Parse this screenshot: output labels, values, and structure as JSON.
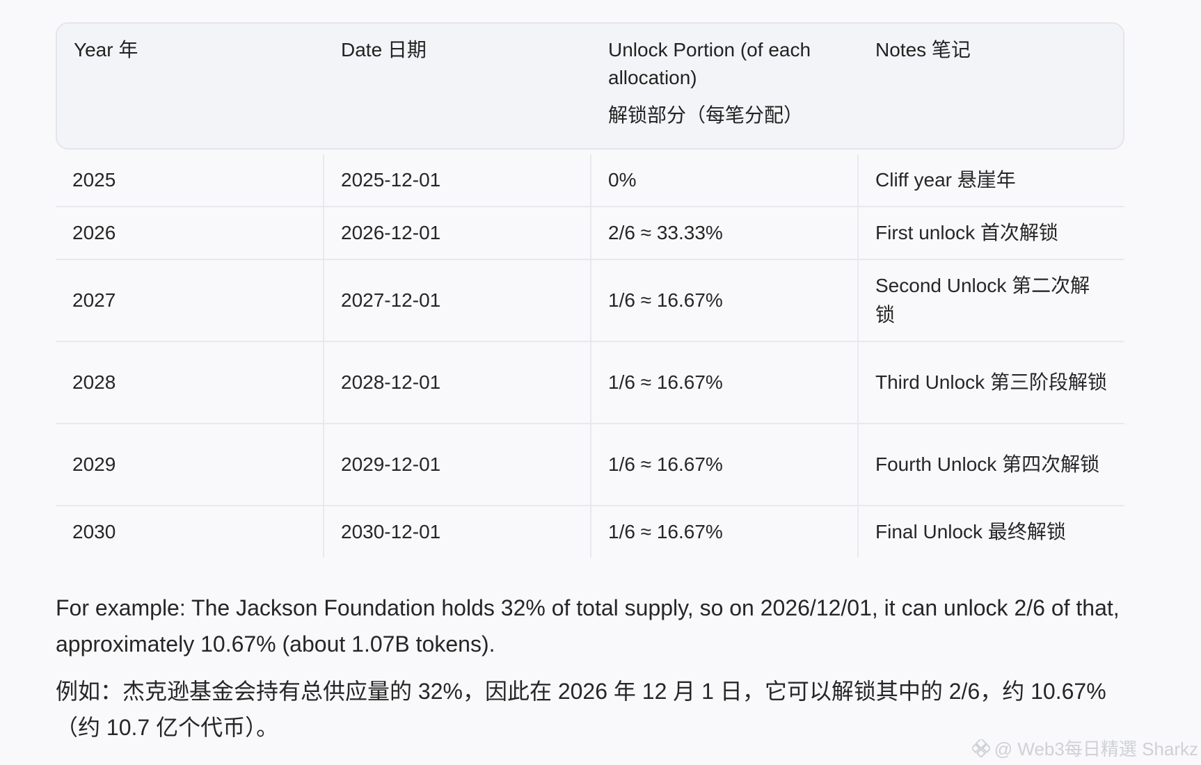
{
  "table": {
    "headers": [
      {
        "text": "Year  年",
        "sub": ""
      },
      {
        "text": "Date  日期",
        "sub": ""
      },
      {
        "text": "Unlock Portion (of each allocation)",
        "sub": "解锁部分（每笔分配）"
      },
      {
        "text": "Notes  笔记",
        "sub": ""
      }
    ],
    "rows": [
      {
        "year": "2025",
        "date": "2025-12-01",
        "portion": "0%",
        "note": "Cliff year  悬崖年"
      },
      {
        "year": "2026",
        "date": "2026-12-01",
        "portion": "2/6 ≈ 33.33%",
        "note": "First unlock  首次解锁"
      },
      {
        "year": "2027",
        "date": "2027-12-01",
        "portion": "1/6 ≈ 16.67%",
        "note": "Second Unlock  第二次解锁"
      },
      {
        "year": "2028",
        "date": "2028-12-01",
        "portion": "1/6 ≈ 16.67%",
        "note": "Third Unlock  第三阶段解锁"
      },
      {
        "year": "2029",
        "date": "2029-12-01",
        "portion": "1/6 ≈ 16.67%",
        "note": "Fourth Unlock  第四次解锁"
      },
      {
        "year": "2030",
        "date": "2030-12-01",
        "portion": "1/6 ≈ 16.67%",
        "note": "Final Unlock  最终解锁"
      }
    ]
  },
  "paragraphs": {
    "english": "For example: The Jackson Foundation holds 32% of total supply, so on 2026/12/01, it can unlock 2/6 of that, approximately 10.67% (about 1.07B tokens).",
    "chinese": "例如：杰克逊基金会持有总供应量的 32%，因此在 2026 年 12 月 1 日，它可以解锁其中的 2/6，约 10.67%（约 10.7 亿个代币）。"
  },
  "watermark": {
    "text": "@ Web3每日精選 Sharkz",
    "icon": "binance-square-icon"
  }
}
